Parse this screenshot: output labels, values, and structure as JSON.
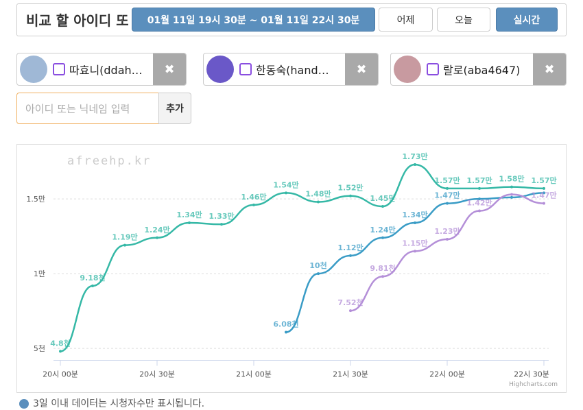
{
  "header": {
    "title": "비교 할 아이디 또",
    "date_range": "01월 11일 19시 30분 ~ 01월 11일 22시 30분",
    "buttons": [
      "어제",
      "오늘",
      "실시간"
    ]
  },
  "streamers": [
    "따효니(ddah…",
    "한동숙(hand…",
    "랄로(aba4647)"
  ],
  "input": {
    "placeholder": "아이디 또는 닉네임 입력",
    "button": "추가"
  },
  "chart_data": {
    "type": "line",
    "watermark": "afreehp.kr",
    "credits": "Highcharts.com",
    "categories": [
      "20시 00분",
      null,
      null,
      "20시 30분",
      null,
      null,
      "21시 00분",
      null,
      null,
      "21시 30분",
      null,
      null,
      "22시 00분",
      null,
      null,
      "22시 30분"
    ],
    "ylim": [
      4200,
      18400
    ],
    "yticks": [
      {
        "value": 5000,
        "label": "5천"
      },
      {
        "value": 10000,
        "label": "1만"
      },
      {
        "value": 15000,
        "label": "1.5만"
      }
    ],
    "grid": true,
    "series": [
      {
        "color": "#35b8a6",
        "values": [
          4800,
          9180,
          11900,
          12400,
          13400,
          13300,
          14600,
          15400,
          14800,
          15200,
          14500,
          17300,
          15700,
          15700,
          15800,
          15700
        ],
        "value_labels": [
          "4.8천",
          "9.18천",
          "1.19만",
          "1.24만",
          "1.34만",
          "1.33만",
          "1.46만",
          "1.54만",
          "1.48만",
          "1.52만",
          "1.45만",
          "1.73만",
          "1.57만",
          "1.57만",
          "1.58만",
          "1.57만"
        ]
      },
      {
        "color": "#3a9cc6",
        "values": [
          null,
          null,
          null,
          null,
          null,
          null,
          null,
          6080,
          10000,
          11200,
          12400,
          13400,
          14700,
          15000,
          15100,
          15400
        ],
        "value_labels": [
          null,
          null,
          null,
          null,
          null,
          null,
          null,
          "6.08천",
          "10천",
          "1.12만",
          "1.24만",
          "1.34만",
          "1.47만",
          null,
          null,
          null
        ]
      },
      {
        "color": "#b48fd8",
        "values": [
          null,
          null,
          null,
          null,
          null,
          null,
          null,
          null,
          null,
          7520,
          9810,
          11500,
          12300,
          14200,
          15300,
          14700
        ],
        "value_labels": [
          null,
          null,
          null,
          null,
          null,
          null,
          null,
          null,
          null,
          "7.52천",
          "9.81천",
          "1.15만",
          "1.23만",
          "1.42만",
          null,
          "1.47만"
        ]
      }
    ]
  },
  "footer": "3일 이내 데이터는 시청자수만 표시됩니다."
}
